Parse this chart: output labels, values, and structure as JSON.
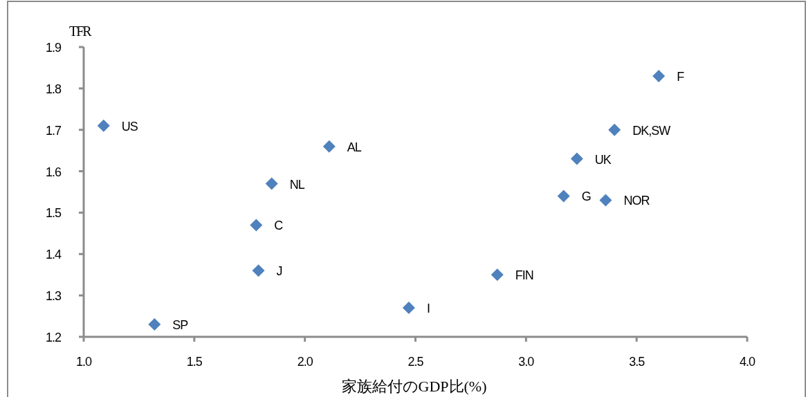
{
  "chart_data": {
    "type": "scatter",
    "xlabel": "家族給付のGDP比(%)",
    "ylabel": "TFR",
    "x": [
      1.09,
      1.32,
      1.78,
      1.79,
      1.85,
      2.11,
      2.47,
      2.87,
      3.17,
      3.23,
      3.36,
      3.4,
      3.6
    ],
    "values": [
      1.71,
      1.23,
      1.47,
      1.36,
      1.57,
      1.66,
      1.27,
      1.35,
      1.54,
      1.63,
      1.53,
      1.7,
      1.83
    ],
    "color": "#4f81bd",
    "marker": "diamond",
    "xlim": [
      1.0,
      4.0
    ],
    "xticks": [
      {
        "value": 1.0,
        "label": "1.0"
      },
      {
        "value": 1.5,
        "label": "1.5"
      },
      {
        "value": 2.0,
        "label": "2.0"
      },
      {
        "value": 2.5,
        "label": "2.5"
      },
      {
        "value": 3.0,
        "label": "3.0"
      },
      {
        "value": 3.5,
        "label": "3.5"
      },
      {
        "value": 4.0,
        "label": "4.0"
      }
    ],
    "ylim": [
      1.2,
      1.9
    ],
    "yticks": [
      1.2,
      1.3,
      1.4,
      1.5,
      1.6,
      1.7,
      1.8,
      1.9
    ],
    "annotations": [
      {
        "text": "US",
        "x": 1.09,
        "y": 1.71
      },
      {
        "text": "SP",
        "x": 1.32,
        "y": 1.23
      },
      {
        "text": "C",
        "x": 1.78,
        "y": 1.47
      },
      {
        "text": "J",
        "x": 1.79,
        "y": 1.36
      },
      {
        "text": "NL",
        "x": 1.85,
        "y": 1.57
      },
      {
        "text": "AL",
        "x": 2.11,
        "y": 1.66
      },
      {
        "text": "I",
        "x": 2.47,
        "y": 1.27
      },
      {
        "text": "FIN",
        "x": 2.87,
        "y": 1.35
      },
      {
        "text": "G",
        "x": 3.17,
        "y": 1.54
      },
      {
        "text": "UK",
        "x": 3.23,
        "y": 1.63
      },
      {
        "text": "NOR",
        "x": 3.36,
        "y": 1.53
      },
      {
        "text": "DK,SW",
        "x": 3.4,
        "y": 1.7
      },
      {
        "text": "F",
        "x": 3.6,
        "y": 1.83
      }
    ]
  }
}
